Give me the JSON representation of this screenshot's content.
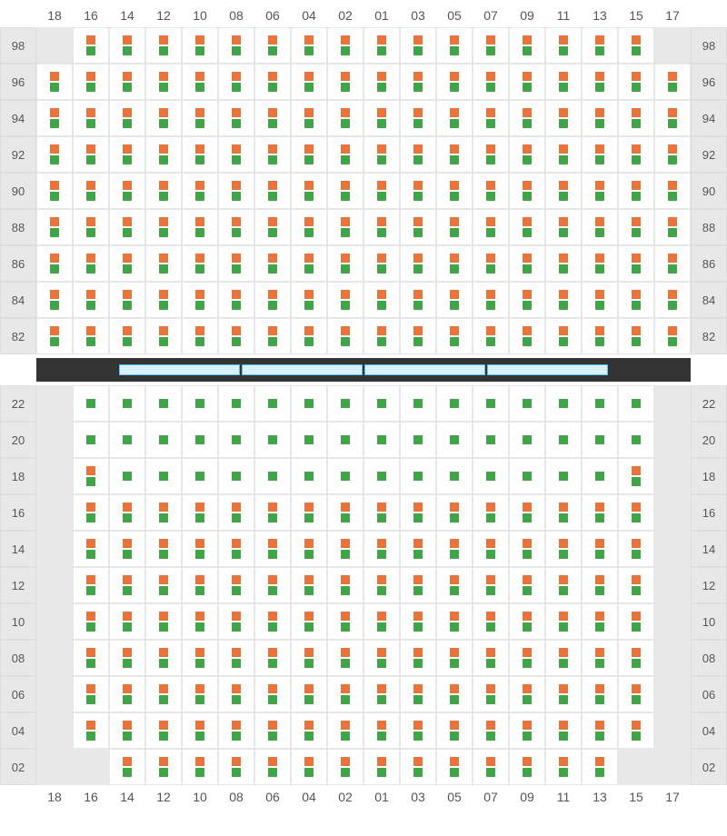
{
  "colors": {
    "orange": "#e8743b",
    "green": "#3fa648",
    "cell_bg": "#ffffff",
    "empty_bg": "#e8e8e8",
    "border": "#e6e6e6",
    "label_bg": "#e8e8e8",
    "label_text": "#555555",
    "divider_bg": "#2b2b2b",
    "divider_seg_bg": "#d6f1ff",
    "divider_seg_border": "#5bbef0"
  },
  "columns": [
    "18",
    "16",
    "14",
    "12",
    "10",
    "08",
    "06",
    "04",
    "02",
    "01",
    "03",
    "05",
    "07",
    "09",
    "11",
    "13",
    "15",
    "17"
  ],
  "divider_segments": 4,
  "top_section": {
    "rows": [
      {
        "label": "98",
        "cells": [
          "E",
          "B",
          "B",
          "B",
          "B",
          "B",
          "B",
          "B",
          "B",
          "B",
          "B",
          "B",
          "B",
          "B",
          "B",
          "B",
          "B",
          "E"
        ]
      },
      {
        "label": "96",
        "cells": [
          "B",
          "B",
          "B",
          "B",
          "B",
          "B",
          "B",
          "B",
          "B",
          "B",
          "B",
          "B",
          "B",
          "B",
          "B",
          "B",
          "B",
          "B"
        ]
      },
      {
        "label": "94",
        "cells": [
          "B",
          "B",
          "B",
          "B",
          "B",
          "B",
          "B",
          "B",
          "B",
          "B",
          "B",
          "B",
          "B",
          "B",
          "B",
          "B",
          "B",
          "B"
        ]
      },
      {
        "label": "92",
        "cells": [
          "B",
          "B",
          "B",
          "B",
          "B",
          "B",
          "B",
          "B",
          "B",
          "B",
          "B",
          "B",
          "B",
          "B",
          "B",
          "B",
          "B",
          "B"
        ]
      },
      {
        "label": "90",
        "cells": [
          "B",
          "B",
          "B",
          "B",
          "B",
          "B",
          "B",
          "B",
          "B",
          "B",
          "B",
          "B",
          "B",
          "B",
          "B",
          "B",
          "B",
          "B"
        ]
      },
      {
        "label": "88",
        "cells": [
          "B",
          "B",
          "B",
          "B",
          "B",
          "B",
          "B",
          "B",
          "B",
          "B",
          "B",
          "B",
          "B",
          "B",
          "B",
          "B",
          "B",
          "B"
        ]
      },
      {
        "label": "86",
        "cells": [
          "B",
          "B",
          "B",
          "B",
          "B",
          "B",
          "B",
          "B",
          "B",
          "B",
          "B",
          "B",
          "B",
          "B",
          "B",
          "B",
          "B",
          "B"
        ]
      },
      {
        "label": "84",
        "cells": [
          "B",
          "B",
          "B",
          "B",
          "B",
          "B",
          "B",
          "B",
          "B",
          "B",
          "B",
          "B",
          "B",
          "B",
          "B",
          "B",
          "B",
          "B"
        ]
      },
      {
        "label": "82",
        "cells": [
          "B",
          "B",
          "B",
          "B",
          "B",
          "B",
          "B",
          "B",
          "B",
          "B",
          "B",
          "B",
          "B",
          "B",
          "B",
          "B",
          "B",
          "B"
        ]
      }
    ]
  },
  "bottom_section": {
    "rows": [
      {
        "label": "22",
        "cells": [
          "E",
          "G",
          "G",
          "G",
          "G",
          "G",
          "G",
          "G",
          "G",
          "G",
          "G",
          "G",
          "G",
          "G",
          "G",
          "G",
          "G",
          "E"
        ]
      },
      {
        "label": "20",
        "cells": [
          "E",
          "G",
          "G",
          "G",
          "G",
          "G",
          "G",
          "G",
          "G",
          "G",
          "G",
          "G",
          "G",
          "G",
          "G",
          "G",
          "G",
          "E"
        ]
      },
      {
        "label": "18",
        "cells": [
          "E",
          "B",
          "G",
          "G",
          "G",
          "G",
          "G",
          "G",
          "G",
          "G",
          "G",
          "G",
          "G",
          "G",
          "G",
          "G",
          "B",
          "E"
        ]
      },
      {
        "label": "16",
        "cells": [
          "E",
          "B",
          "B",
          "B",
          "B",
          "B",
          "B",
          "B",
          "B",
          "B",
          "B",
          "B",
          "B",
          "B",
          "B",
          "B",
          "B",
          "E"
        ]
      },
      {
        "label": "14",
        "cells": [
          "E",
          "B",
          "B",
          "B",
          "B",
          "B",
          "B",
          "B",
          "B",
          "B",
          "B",
          "B",
          "B",
          "B",
          "B",
          "B",
          "B",
          "E"
        ]
      },
      {
        "label": "12",
        "cells": [
          "E",
          "B",
          "B",
          "B",
          "B",
          "B",
          "B",
          "B",
          "B",
          "B",
          "B",
          "B",
          "B",
          "B",
          "B",
          "B",
          "B",
          "E"
        ]
      },
      {
        "label": "10",
        "cells": [
          "E",
          "B",
          "B",
          "B",
          "B",
          "B",
          "B",
          "B",
          "B",
          "B",
          "B",
          "B",
          "B",
          "B",
          "B",
          "B",
          "B",
          "E"
        ]
      },
      {
        "label": "08",
        "cells": [
          "E",
          "B",
          "B",
          "B",
          "B",
          "B",
          "B",
          "B",
          "B",
          "B",
          "B",
          "B",
          "B",
          "B",
          "B",
          "B",
          "B",
          "E"
        ]
      },
      {
        "label": "06",
        "cells": [
          "E",
          "B",
          "B",
          "B",
          "B",
          "B",
          "B",
          "B",
          "B",
          "B",
          "B",
          "B",
          "B",
          "B",
          "B",
          "B",
          "B",
          "E"
        ]
      },
      {
        "label": "04",
        "cells": [
          "E",
          "B",
          "B",
          "B",
          "B",
          "B",
          "B",
          "B",
          "B",
          "B",
          "B",
          "B",
          "B",
          "B",
          "B",
          "B",
          "B",
          "E"
        ]
      },
      {
        "label": "02",
        "cells": [
          "E",
          "E",
          "B",
          "B",
          "B",
          "B",
          "B",
          "B",
          "B",
          "B",
          "B",
          "B",
          "B",
          "B",
          "B",
          "B",
          "E",
          "E"
        ]
      }
    ]
  }
}
